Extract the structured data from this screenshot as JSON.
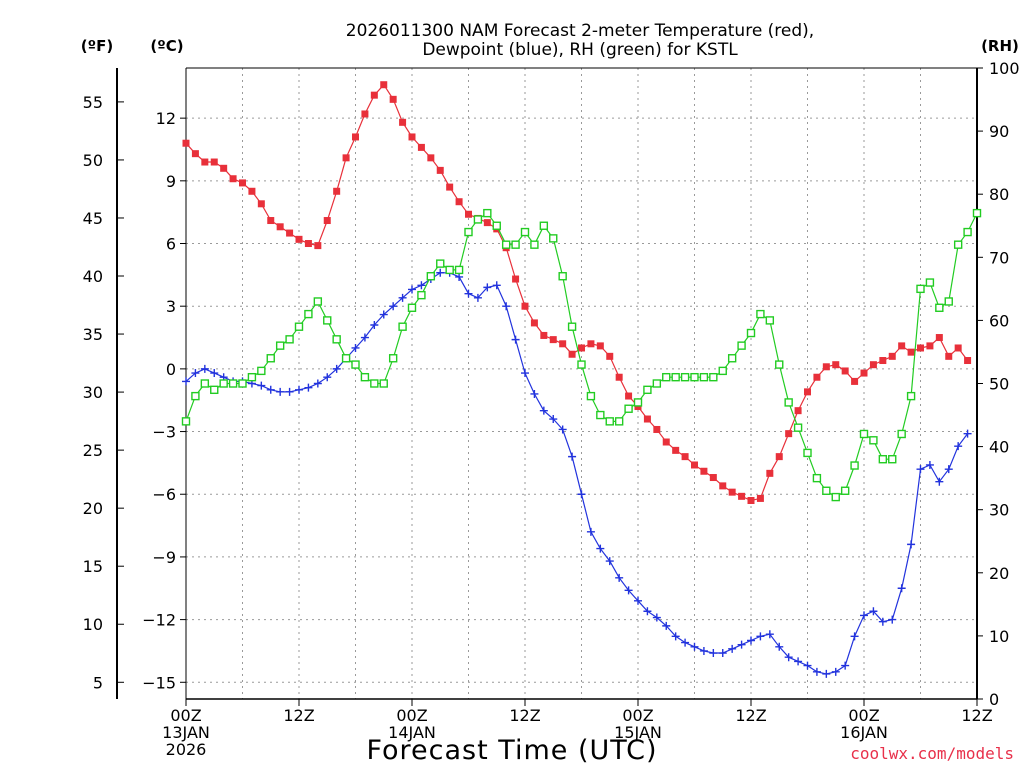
{
  "chart_data": {
    "type": "line",
    "title": [
      "2026011300 NAM Forecast 2-meter Temperature (red),",
      "Dewpoint (blue), RH (green) for KSTL"
    ],
    "unit_labels": {
      "fahrenheit": "(ºF)",
      "celsius": "(ºC)",
      "rh": "(RH)"
    },
    "xlabel": "Forecast Time (UTC)",
    "credit": "coolwx.com/models",
    "x_range_hours": [
      0,
      84
    ],
    "x_ticks": [
      {
        "hour": 0,
        "lines": [
          "00Z",
          "13JAN",
          "2026"
        ]
      },
      {
        "hour": 12,
        "lines": [
          "12Z"
        ]
      },
      {
        "hour": 24,
        "lines": [
          "00Z",
          "14JAN"
        ]
      },
      {
        "hour": 36,
        "lines": [
          "12Z"
        ]
      },
      {
        "hour": 48,
        "lines": [
          "00Z",
          "15JAN"
        ]
      },
      {
        "hour": 60,
        "lines": [
          "12Z"
        ]
      },
      {
        "hour": 72,
        "lines": [
          "00Z",
          "16JAN"
        ]
      },
      {
        "hour": 84,
        "lines": [
          "12Z"
        ]
      }
    ],
    "ylim_celsius": [
      -15.8,
      14.4
    ],
    "ylim_rh": [
      0,
      100
    ],
    "celsius_ticks": [
      "−15",
      "−12",
      "−9",
      "−6",
      "−3",
      "0",
      "3",
      "6",
      "9",
      "12"
    ],
    "fahrenheit_ticks": [
      "5",
      "10",
      "15",
      "20",
      "25",
      "30",
      "35",
      "40",
      "45",
      "50",
      "55"
    ],
    "rh_ticks": [
      "0",
      "10",
      "20",
      "30",
      "40",
      "50",
      "60",
      "70",
      "80",
      "90",
      "100"
    ],
    "series": [
      {
        "name": "Temperature",
        "units": "°C",
        "axis": "celsius",
        "color": "#e8303a",
        "marker": "filled-square",
        "points": [
          [
            0,
            10.8
          ],
          [
            1,
            10.3
          ],
          [
            2,
            9.9
          ],
          [
            3,
            9.9
          ],
          [
            4,
            9.6
          ],
          [
            5,
            9.1
          ],
          [
            6,
            8.9
          ],
          [
            7,
            8.5
          ],
          [
            8,
            7.9
          ],
          [
            9,
            7.1
          ],
          [
            10,
            6.8
          ],
          [
            11,
            6.5
          ],
          [
            12,
            6.2
          ],
          [
            13,
            6.0
          ],
          [
            14,
            5.9
          ],
          [
            15,
            7.1
          ],
          [
            16,
            8.5
          ],
          [
            17,
            10.1
          ],
          [
            18,
            11.1
          ],
          [
            19,
            12.2
          ],
          [
            20,
            13.1
          ],
          [
            21,
            13.6
          ],
          [
            22,
            12.9
          ],
          [
            23,
            11.8
          ],
          [
            24,
            11.1
          ],
          [
            25,
            10.6
          ],
          [
            26,
            10.1
          ],
          [
            27,
            9.5
          ],
          [
            28,
            8.7
          ],
          [
            29,
            8.0
          ],
          [
            30,
            7.4
          ],
          [
            31,
            7.2
          ],
          [
            32,
            7.0
          ],
          [
            33,
            6.7
          ],
          [
            34,
            5.8
          ],
          [
            35,
            4.3
          ],
          [
            36,
            3.0
          ],
          [
            37,
            2.2
          ],
          [
            38,
            1.6
          ],
          [
            39,
            1.4
          ],
          [
            40,
            1.2
          ],
          [
            41,
            0.7
          ],
          [
            42,
            1.0
          ],
          [
            43,
            1.2
          ],
          [
            44,
            1.1
          ],
          [
            45,
            0.6
          ],
          [
            46,
            -0.4
          ],
          [
            47,
            -1.3
          ],
          [
            48,
            -1.8
          ],
          [
            49,
            -2.4
          ],
          [
            50,
            -2.9
          ],
          [
            51,
            -3.5
          ],
          [
            52,
            -3.9
          ],
          [
            53,
            -4.2
          ],
          [
            54,
            -4.6
          ],
          [
            55,
            -4.9
          ],
          [
            56,
            -5.2
          ],
          [
            57,
            -5.6
          ],
          [
            58,
            -5.9
          ],
          [
            59,
            -6.1
          ],
          [
            60,
            -6.3
          ],
          [
            61,
            -6.2
          ],
          [
            62,
            -5.0
          ],
          [
            63,
            -4.2
          ],
          [
            64,
            -3.1
          ],
          [
            65,
            -2.0
          ],
          [
            66,
            -1.1
          ],
          [
            67,
            -0.4
          ],
          [
            68,
            0.1
          ],
          [
            69,
            0.2
          ],
          [
            70,
            -0.1
          ],
          [
            71,
            -0.6
          ],
          [
            72,
            -0.2
          ],
          [
            73,
            0.2
          ],
          [
            74,
            0.4
          ],
          [
            75,
            0.6
          ],
          [
            76,
            1.1
          ],
          [
            77,
            0.8
          ],
          [
            78,
            1.0
          ],
          [
            79,
            1.1
          ],
          [
            80,
            1.5
          ],
          [
            81,
            0.6
          ],
          [
            82,
            1.0
          ],
          [
            83,
            0.4
          ]
        ]
      },
      {
        "name": "Dewpoint",
        "units": "°C",
        "axis": "celsius",
        "color": "#2233dd",
        "marker": "plus",
        "points": [
          [
            0,
            -0.6
          ],
          [
            1,
            -0.2
          ],
          [
            2,
            0.0
          ],
          [
            3,
            -0.2
          ],
          [
            4,
            -0.4
          ],
          [
            5,
            -0.6
          ],
          [
            6,
            -0.6
          ],
          [
            7,
            -0.7
          ],
          [
            8,
            -0.8
          ],
          [
            9,
            -1.0
          ],
          [
            10,
            -1.1
          ],
          [
            11,
            -1.1
          ],
          [
            12,
            -1.0
          ],
          [
            13,
            -0.9
          ],
          [
            14,
            -0.7
          ],
          [
            15,
            -0.4
          ],
          [
            16,
            0.0
          ],
          [
            17,
            0.5
          ],
          [
            18,
            1.0
          ],
          [
            19,
            1.5
          ],
          [
            20,
            2.1
          ],
          [
            21,
            2.6
          ],
          [
            22,
            3.0
          ],
          [
            23,
            3.4
          ],
          [
            24,
            3.8
          ],
          [
            25,
            4.0
          ],
          [
            26,
            4.3
          ],
          [
            27,
            4.6
          ],
          [
            28,
            4.6
          ],
          [
            29,
            4.4
          ],
          [
            30,
            3.6
          ],
          [
            31,
            3.4
          ],
          [
            32,
            3.9
          ],
          [
            33,
            4.0
          ],
          [
            34,
            3.0
          ],
          [
            35,
            1.4
          ],
          [
            36,
            -0.2
          ],
          [
            37,
            -1.2
          ],
          [
            38,
            -2.0
          ],
          [
            39,
            -2.4
          ],
          [
            40,
            -2.9
          ],
          [
            41,
            -4.2
          ],
          [
            42,
            -6.0
          ],
          [
            43,
            -7.8
          ],
          [
            44,
            -8.6
          ],
          [
            45,
            -9.2
          ],
          [
            46,
            -10.0
          ],
          [
            47,
            -10.6
          ],
          [
            48,
            -11.1
          ],
          [
            49,
            -11.6
          ],
          [
            50,
            -11.9
          ],
          [
            51,
            -12.3
          ],
          [
            52,
            -12.8
          ],
          [
            53,
            -13.1
          ],
          [
            54,
            -13.3
          ],
          [
            55,
            -13.5
          ],
          [
            56,
            -13.6
          ],
          [
            57,
            -13.6
          ],
          [
            58,
            -13.4
          ],
          [
            59,
            -13.2
          ],
          [
            60,
            -13.0
          ],
          [
            61,
            -12.8
          ],
          [
            62,
            -12.7
          ],
          [
            63,
            -13.3
          ],
          [
            64,
            -13.8
          ],
          [
            65,
            -14.0
          ],
          [
            66,
            -14.2
          ],
          [
            67,
            -14.5
          ],
          [
            68,
            -14.6
          ],
          [
            69,
            -14.5
          ],
          [
            70,
            -14.2
          ],
          [
            71,
            -12.8
          ],
          [
            72,
            -11.8
          ],
          [
            73,
            -11.6
          ],
          [
            74,
            -12.1
          ],
          [
            75,
            -12.0
          ],
          [
            76,
            -10.5
          ],
          [
            77,
            -8.4
          ],
          [
            78,
            -4.8
          ],
          [
            79,
            -4.6
          ],
          [
            80,
            -5.4
          ],
          [
            81,
            -4.8
          ],
          [
            82,
            -3.7
          ],
          [
            83,
            -3.1
          ]
        ]
      },
      {
        "name": "Relative Humidity",
        "units": "%",
        "axis": "rh",
        "color": "#22cc22",
        "marker": "open-square",
        "points": [
          [
            0,
            44
          ],
          [
            1,
            48
          ],
          [
            2,
            50
          ],
          [
            3,
            49
          ],
          [
            4,
            50
          ],
          [
            5,
            50
          ],
          [
            6,
            50
          ],
          [
            7,
            51
          ],
          [
            8,
            52
          ],
          [
            9,
            54
          ],
          [
            10,
            56
          ],
          [
            11,
            57
          ],
          [
            12,
            59
          ],
          [
            13,
            61
          ],
          [
            14,
            63
          ],
          [
            15,
            60
          ],
          [
            16,
            57
          ],
          [
            17,
            54
          ],
          [
            18,
            53
          ],
          [
            19,
            51
          ],
          [
            20,
            50
          ],
          [
            21,
            50
          ],
          [
            22,
            54
          ],
          [
            23,
            59
          ],
          [
            24,
            62
          ],
          [
            25,
            64
          ],
          [
            26,
            67
          ],
          [
            27,
            69
          ],
          [
            28,
            68
          ],
          [
            29,
            68
          ],
          [
            30,
            74
          ],
          [
            31,
            76
          ],
          [
            32,
            77
          ],
          [
            33,
            75
          ],
          [
            34,
            72
          ],
          [
            35,
            72
          ],
          [
            36,
            74
          ],
          [
            37,
            72
          ],
          [
            38,
            75
          ],
          [
            39,
            73
          ],
          [
            40,
            67
          ],
          [
            41,
            59
          ],
          [
            42,
            53
          ],
          [
            43,
            48
          ],
          [
            44,
            45
          ],
          [
            45,
            44
          ],
          [
            46,
            44
          ],
          [
            47,
            46
          ],
          [
            48,
            47
          ],
          [
            49,
            49
          ],
          [
            50,
            50
          ],
          [
            51,
            51
          ],
          [
            52,
            51
          ],
          [
            53,
            51
          ],
          [
            54,
            51
          ],
          [
            55,
            51
          ],
          [
            56,
            51
          ],
          [
            57,
            52
          ],
          [
            58,
            54
          ],
          [
            59,
            56
          ],
          [
            60,
            58
          ],
          [
            61,
            61
          ],
          [
            62,
            60
          ],
          [
            63,
            53
          ],
          [
            64,
            47
          ],
          [
            65,
            43
          ],
          [
            66,
            39
          ],
          [
            67,
            35
          ],
          [
            68,
            33
          ],
          [
            69,
            32
          ],
          [
            70,
            33
          ],
          [
            71,
            37
          ],
          [
            72,
            42
          ],
          [
            73,
            41
          ],
          [
            74,
            38
          ],
          [
            75,
            38
          ],
          [
            76,
            42
          ],
          [
            77,
            48
          ],
          [
            78,
            65
          ],
          [
            79,
            66
          ],
          [
            80,
            62
          ],
          [
            81,
            63
          ],
          [
            82,
            72
          ],
          [
            83,
            74
          ],
          [
            84,
            77
          ]
        ]
      }
    ]
  }
}
